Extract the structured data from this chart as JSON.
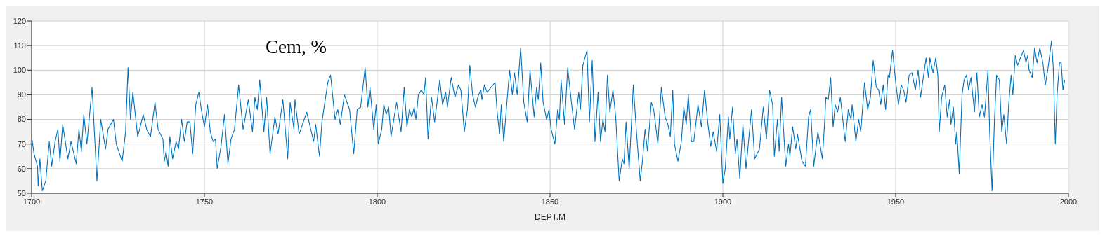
{
  "chart_data": {
    "type": "line",
    "title": "Cem, %",
    "xlabel": "DEPT.M",
    "xlim": [
      1700,
      2000
    ],
    "xticks": [
      1700,
      1750,
      1800,
      1850,
      1900,
      1950,
      2000
    ],
    "ylim": [
      50,
      120
    ],
    "yticks": [
      50,
      60,
      70,
      80,
      90,
      100,
      110,
      120
    ],
    "grid": true,
    "legend": false,
    "marker": "none",
    "line_style": "solid",
    "series": [
      {
        "color": "#0072bd",
        "x": [
          1700,
          1700.7,
          1701.7,
          1701.9,
          1702.4,
          1703.1,
          1704.1,
          1705.1,
          1705.8,
          1706.8,
          1707.6,
          1708.2,
          1709,
          1710.5,
          1711.4,
          1712.9,
          1713.7,
          1714.4,
          1715.1,
          1716,
          1717.5,
          1718.9,
          1720,
          1721.4,
          1722.1,
          1723.7,
          1724.5,
          1726.2,
          1727.2,
          1727.9,
          1728.6,
          1729.3,
          1730.7,
          1732.3,
          1733.3,
          1734.4,
          1735.7,
          1736.6,
          1738,
          1738.4,
          1738.9,
          1739.5,
          1740,
          1740.8,
          1741.8,
          1742.5,
          1743.4,
          1744.2,
          1745,
          1745.8,
          1746.6,
          1747.5,
          1748.4,
          1749.1,
          1750,
          1750.9,
          1751.7,
          1752.5,
          1753.2,
          1753.7,
          1754.8,
          1755.8,
          1756.8,
          1757.7,
          1758.7,
          1759.9,
          1761.2,
          1762.7,
          1763.9,
          1764.6,
          1765.3,
          1766,
          1767.2,
          1768,
          1769,
          1770.4,
          1771.3,
          1772.7,
          1774.1,
          1774.8,
          1775.9,
          1776.2,
          1777.4,
          1779.6,
          1781.6,
          1782.2,
          1783.3,
          1784,
          1785.7,
          1786.5,
          1787.8,
          1788.6,
          1789.3,
          1790.5,
          1792,
          1793.2,
          1794.2,
          1795.2,
          1796.5,
          1797.3,
          1797.9,
          1799,
          1799.7,
          1800.3,
          1801.3,
          1801.9,
          1802.6,
          1803.3,
          1804,
          1805.6,
          1806.9,
          1807.8,
          1808.6,
          1809.3,
          1810,
          1810.7,
          1811.2,
          1811.9,
          1812.8,
          1813.5,
          1814,
          1814.7,
          1815.7,
          1816.6,
          1818.1,
          1818.9,
          1819.8,
          1820.3,
          1821.4,
          1822.5,
          1823.5,
          1824.2,
          1825.2,
          1826.1,
          1826.8,
          1827.6,
          1828.4,
          1829.3,
          1830,
          1830.3,
          1831,
          1831.8,
          1832.9,
          1834.1,
          1834.7,
          1835.4,
          1835.9,
          1836.6,
          1837.7,
          1838.3,
          1839.1,
          1839.7,
          1840.5,
          1841.5,
          1842.4,
          1843.4,
          1844.2,
          1845.4,
          1846.1,
          1846.6,
          1847.3,
          1848,
          1849,
          1849.7,
          1850.3,
          1851.4,
          1852.2,
          1852.7,
          1853.2,
          1854.2,
          1855.1,
          1856.1,
          1857.1,
          1858.3,
          1858.8,
          1859.5,
          1860.7,
          1861.4,
          1862.2,
          1863,
          1863.9,
          1864.6,
          1865.3,
          1865.9,
          1866.6,
          1867.3,
          1868.2,
          1869,
          1870,
          1870.9,
          1871.4,
          1872,
          1872.9,
          1874.1,
          1875.1,
          1876.1,
          1876.8,
          1877.5,
          1878.2,
          1879.3,
          1880,
          1881.2,
          1882.2,
          1883.3,
          1884.1,
          1884.8,
          1885.5,
          1886,
          1887,
          1888,
          1888.7,
          1889.4,
          1890,
          1890.9,
          1891.6,
          1892.8,
          1893.8,
          1894.7,
          1895.6,
          1896.5,
          1897.2,
          1898.2,
          1899.1,
          1900,
          1900.7,
          1901.6,
          1902,
          1902.8,
          1903.6,
          1904.1,
          1904.9,
          1905.8,
          1906.7,
          1908.3,
          1909.2,
          1910.6,
          1911.7,
          1912.6,
          1913.5,
          1914.4,
          1914.9,
          1915.8,
          1916.3,
          1917,
          1918.2,
          1919,
          1919.4,
          1920.2,
          1921.1,
          1921.6,
          1922.9,
          1923.9,
          1924.8,
          1925.4,
          1926.3,
          1927.5,
          1928.8,
          1929.5,
          1929.8,
          1930.5,
          1931.2,
          1931.9,
          1932.5,
          1933.2,
          1934,
          1935.4,
          1936.3,
          1937.1,
          1937.4,
          1938.5,
          1939.3,
          1939.9,
          1941,
          1941.9,
          1942.7,
          1943.5,
          1944.4,
          1945.1,
          1945.7,
          1946.4,
          1947.1,
          1947.8,
          1948.2,
          1949.1,
          1950.1,
          1950.8,
          1951.6,
          1952.3,
          1953,
          1953.9,
          1954.7,
          1955.7,
          1956.5,
          1957.2,
          1957.9,
          1958.8,
          1959.5,
          1959.9,
          1960.8,
          1961.6,
          1962.2,
          1962.6,
          1963.3,
          1964.2,
          1964.9,
          1965.6,
          1966,
          1966.7,
          1967.4,
          1967.7,
          1968.4,
          1969.2,
          1969.8,
          1970.5,
          1971.1,
          1971.8,
          1972.8,
          1973.5,
          1974.2,
          1975,
          1975.7,
          1976.7,
          1977.2,
          1977.9,
          1978.6,
          1979.2,
          1980,
          1980.7,
          1981.3,
          1982.1,
          1982.7,
          1983.4,
          1983.9,
          1984.6,
          1985.3,
          1986.1,
          1987,
          1987.7,
          1988.2,
          1988.6,
          1989.5,
          1990.2,
          1990.9,
          1991.7,
          1992.6,
          1993.3,
          1994.1,
          1995.1,
          1995.6,
          1996.2,
          1996.7,
          1997.4,
          1997.9,
          1998.4,
          1998.9
        ],
        "values": [
          73,
          66,
          61,
          53,
          64,
          51,
          55,
          71,
          61,
          71,
          76,
          63,
          78,
          64,
          71,
          62,
          76,
          67,
          82,
          70,
          93,
          55,
          80,
          68,
          76,
          80,
          70,
          63,
          75,
          101,
          80,
          91,
          73,
          82,
          76,
          73,
          87,
          76,
          72,
          63,
          67,
          61,
          73,
          64,
          71,
          68,
          80,
          71,
          79,
          79,
          66,
          86,
          91,
          84,
          77,
          86,
          75,
          71,
          72,
          60,
          69,
          82,
          62,
          72,
          76,
          94,
          76,
          88,
          75,
          89,
          84,
          96,
          75,
          89,
          66,
          81,
          74,
          88,
          64,
          87,
          76,
          88,
          74,
          83,
          71,
          78,
          65,
          79,
          95,
          98,
          80,
          84,
          78,
          90,
          84,
          66,
          84,
          85,
          101,
          85,
          93,
          76,
          86,
          70,
          76,
          86,
          82,
          85,
          73,
          87,
          75,
          93,
          77,
          84,
          81,
          85,
          80,
          90,
          92,
          90,
          97,
          72,
          89,
          79,
          96,
          86,
          91,
          85,
          97,
          89,
          94,
          92,
          75,
          84,
          102,
          90,
          85,
          90,
          92,
          88,
          94,
          91,
          93,
          95,
          83,
          74,
          86,
          71,
          90,
          100,
          90,
          99,
          90,
          109,
          87,
          79,
          100,
          81,
          93,
          88,
          103,
          87,
          80,
          84,
          76,
          70,
          84,
          80,
          96,
          78,
          101,
          88,
          76,
          91,
          84,
          102,
          108,
          79,
          104,
          71,
          91,
          71,
          80,
          75,
          98,
          83,
          92,
          81,
          55,
          64,
          62,
          79,
          60,
          94,
          73,
          55,
          64,
          76,
          67,
          87,
          84,
          70,
          93,
          81,
          78,
          73,
          92,
          70,
          63,
          71,
          85,
          78,
          90,
          71,
          71,
          86,
          77,
          92,
          79,
          69,
          75,
          67,
          82,
          54,
          60,
          81,
          72,
          85,
          66,
          72,
          56,
          78,
          60,
          84,
          64,
          68,
          85,
          72,
          92,
          86,
          65,
          80,
          67,
          89,
          61,
          70,
          65,
          77,
          68,
          74,
          63,
          61,
          81,
          84,
          61,
          75,
          64,
          80,
          89,
          88,
          97,
          77,
          86,
          83,
          89,
          71,
          84,
          80,
          86,
          71,
          80,
          75,
          95,
          84,
          89,
          104,
          93,
          92,
          86,
          94,
          84,
          98,
          97,
          108,
          94,
          86,
          94,
          92,
          87,
          98,
          99,
          92,
          100,
          89,
          96,
          105,
          97,
          105,
          99,
          105,
          98,
          75,
          89,
          94,
          81,
          88,
          78,
          85,
          70,
          75,
          58,
          90,
          96,
          98,
          92,
          97,
          83,
          99,
          81,
          86,
          81,
          100,
          75,
          51,
          80,
          98,
          96,
          75,
          82,
          70,
          86,
          98,
          90,
          106,
          102,
          105,
          108,
          103,
          106,
          100,
          97,
          109,
          103,
          109,
          103,
          94,
          101,
          112,
          101,
          70,
          90,
          103,
          103,
          92,
          96
        ]
      }
    ]
  }
}
